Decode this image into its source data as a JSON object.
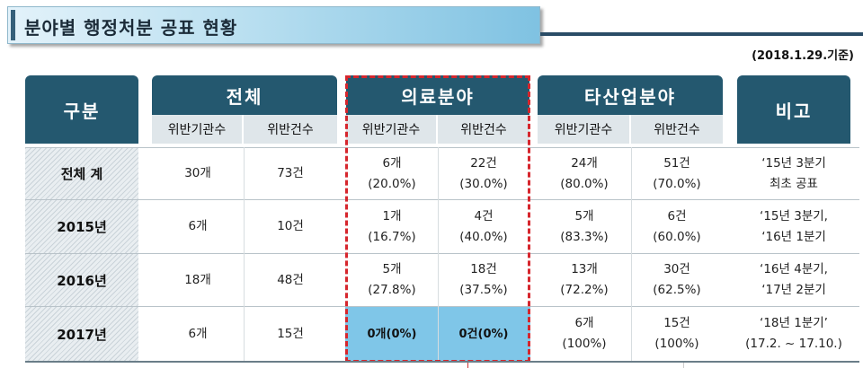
{
  "title": "분야별 행정처분 공표 현황",
  "as_of": "(2018.1.29.기준)",
  "headers": {
    "category": "구분",
    "total": "전체",
    "medical": "의료분야",
    "other": "타산업분야",
    "note": "비고",
    "sub_institutions": "위반기관수",
    "sub_cases": "위반건수"
  },
  "rows": [
    {
      "label": "전체 계",
      "total_inst": "30개",
      "total_cases": "73건",
      "med_inst": [
        "6개",
        "(20.0%)"
      ],
      "med_cases": [
        "22건",
        "(30.0%)"
      ],
      "oth_inst": [
        "24개",
        "(80.0%)"
      ],
      "oth_cases": [
        "51건",
        "(70.0%)"
      ],
      "note": [
        "‘15년 3분기",
        "최초 공표"
      ]
    },
    {
      "label": "2015년",
      "total_inst": "6개",
      "total_cases": "10건",
      "med_inst": [
        "1개",
        "(16.7%)"
      ],
      "med_cases": [
        "4건",
        "(40.0%)"
      ],
      "oth_inst": [
        "5개",
        "(83.3%)"
      ],
      "oth_cases": [
        "6건",
        "(60.0%)"
      ],
      "note": [
        "‘15년 3분기,",
        "‘16년 1분기"
      ]
    },
    {
      "label": "2016년",
      "total_inst": "18개",
      "total_cases": "48건",
      "med_inst": [
        "5개",
        "(27.8%)"
      ],
      "med_cases": [
        "18건",
        "(37.5%)"
      ],
      "oth_inst": [
        "13개",
        "(72.2%)"
      ],
      "oth_cases": [
        "30건",
        "(62.5%)"
      ],
      "note": [
        "‘16년 4분기,",
        "‘17년 2분기"
      ]
    },
    {
      "label": "2017년",
      "total_inst": "6개",
      "total_cases": "15건",
      "med_inst": [
        "0개(0%)"
      ],
      "med_cases": [
        "0건(0%)"
      ],
      "oth_inst": [
        "6개",
        "(100%)"
      ],
      "oth_cases": [
        "15건",
        "(100%)"
      ],
      "note": [
        "‘18년 1분기’",
        "(17.2. ~ 17.10.)"
      ]
    }
  ],
  "colors": {
    "header": "#24586f",
    "subheader": "#dfe6ea",
    "highlight": "#7fc6e8",
    "dashed_border": "#d6262d"
  }
}
